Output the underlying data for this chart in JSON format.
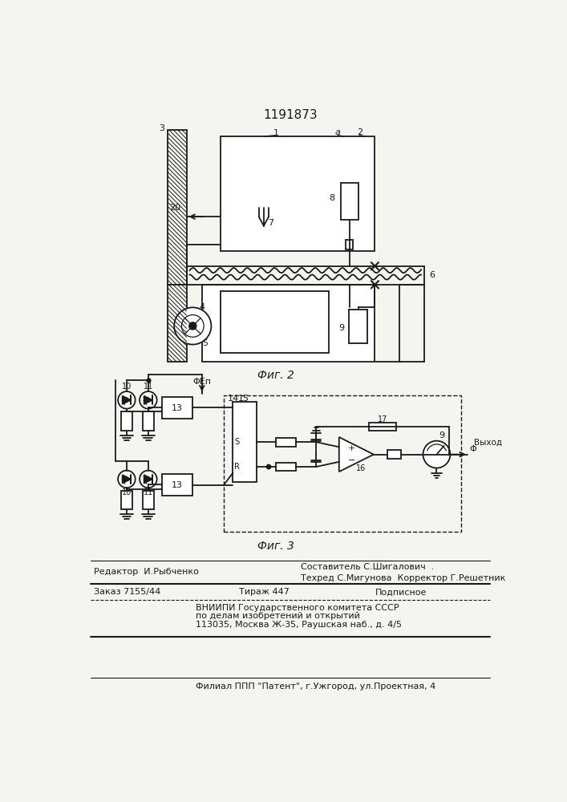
{
  "patent_number": "1191873",
  "bg_color": "#f5f4f0",
  "line_color": "#1a1a1a",
  "fig2_caption": "Фиг. 2",
  "fig3_caption": "Фиг. 3",
  "footer": {
    "composer": "Составитель С.Шигалович  .",
    "editor": "Редактор  И.Рыбченко",
    "techred": "Техред С.Мигунова  Корректор Г.Решетник",
    "order": "Заказ 7155/44",
    "tirage": "Тираж 447",
    "podpis": "Подписное",
    "vniip1": "ВНИИПИ Государственного комитета СССР",
    "vniip2": "по делам изобретений и открытий",
    "vniip3": "113035, Москва Ж-35, Раушская наб., д. 4/5",
    "filial": "Филиал ППП \"Патент\", г.Ужгород, ул.Проектная, 4"
  }
}
